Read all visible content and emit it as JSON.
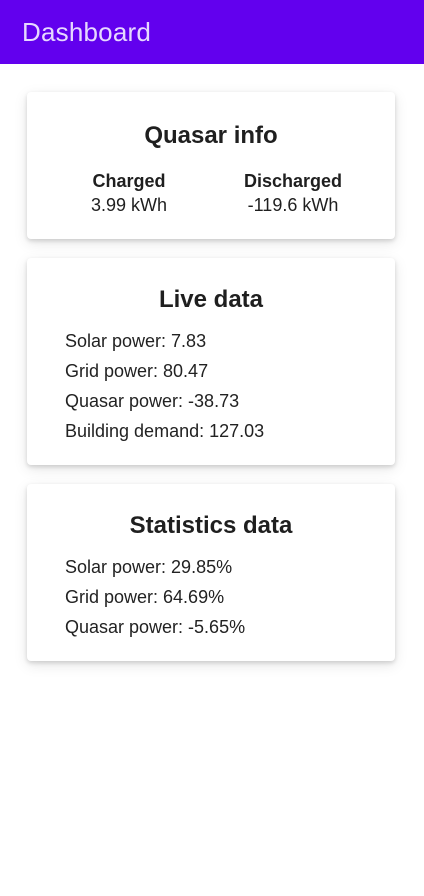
{
  "app_bar": {
    "title": "Dashboard",
    "background": "#6200ee"
  },
  "quasar_info": {
    "title": "Quasar info",
    "charged": {
      "label": "Charged",
      "value": "3.99 kWh"
    },
    "discharged": {
      "label": "Discharged",
      "value": "-119.6 kWh"
    }
  },
  "live_data": {
    "title": "Live data",
    "items": [
      "Solar power: 7.83",
      "Grid power: 80.47",
      "Quasar power: -38.73",
      "Building demand: 127.03"
    ]
  },
  "statistics_data": {
    "title": "Statistics data",
    "items": [
      "Solar power: 29.85%",
      "Grid power: 64.69%",
      "Quasar power: -5.65%"
    ]
  }
}
